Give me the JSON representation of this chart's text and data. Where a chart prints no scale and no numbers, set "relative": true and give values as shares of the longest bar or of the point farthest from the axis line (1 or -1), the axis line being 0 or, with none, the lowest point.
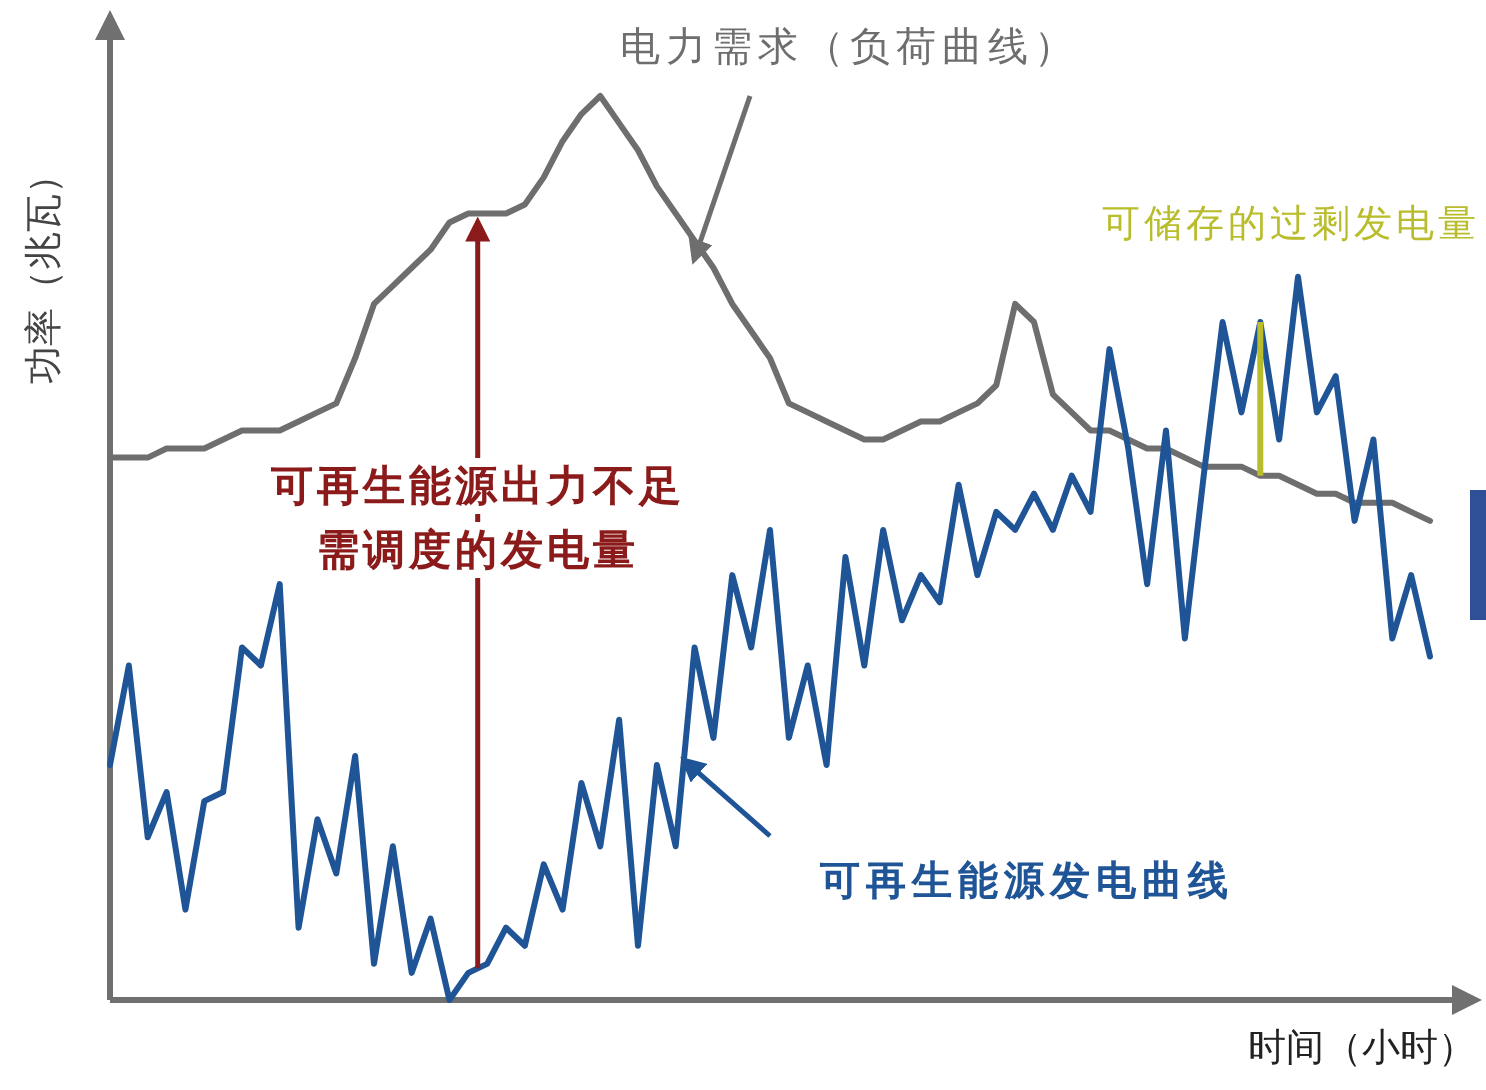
{
  "chart_data": {
    "type": "line",
    "relative": true,
    "xlabel": "时间（小时）",
    "ylabel": "功率（兆瓦）",
    "categories": [
      null,
      null,
      null,
      null,
      null,
      null,
      null,
      null,
      null,
      null,
      null,
      null,
      null,
      null,
      null,
      null,
      null,
      null,
      null,
      null,
      null,
      null,
      null,
      null,
      null,
      null,
      null,
      null,
      null,
      null,
      null,
      null,
      null,
      null,
      null,
      null,
      null,
      null,
      null,
      null,
      null,
      null,
      null,
      null,
      null,
      null,
      null,
      null,
      null,
      null,
      null,
      null,
      null,
      null,
      null,
      null,
      null,
      null,
      null,
      null,
      null,
      null,
      null,
      null,
      null,
      null,
      null,
      null,
      null,
      null,
      null
    ],
    "series": [
      {
        "name": "电力需求（负荷曲线）",
        "color": "#6e6e6e",
        "values": [
          0.6,
          0.6,
          0.6,
          0.61,
          0.61,
          0.61,
          0.62,
          0.63,
          0.63,
          0.63,
          0.64,
          0.65,
          0.66,
          0.71,
          0.77,
          0.79,
          0.81,
          0.83,
          0.86,
          0.87,
          0.87,
          0.87,
          0.88,
          0.91,
          0.95,
          0.98,
          1,
          0.97,
          0.94,
          0.9,
          0.87,
          0.84,
          0.81,
          0.77,
          0.74,
          0.71,
          0.66,
          0.65,
          0.64,
          0.63,
          0.62,
          0.62,
          0.63,
          0.64,
          0.64,
          0.65,
          0.66,
          0.68,
          0.77,
          0.75,
          0.67,
          0.65,
          0.63,
          0.63,
          0.62,
          0.61,
          0.61,
          0.6,
          0.59,
          0.59,
          0.59,
          0.58,
          0.58,
          0.57,
          0.56,
          0.56,
          0.55,
          0.55,
          0.55,
          0.54,
          0.53
        ]
      },
      {
        "name": "可再生能源发电曲线",
        "color": "#1f5597",
        "values": [
          0.26,
          0.37,
          0.18,
          0.23,
          0.1,
          0.22,
          0.23,
          0.39,
          0.37,
          0.46,
          0.08,
          0.2,
          0.14,
          0.27,
          0.04,
          0.17,
          0.03,
          0.09,
          0,
          0.03,
          0.04,
          0.08,
          0.06,
          0.15,
          0.1,
          0.24,
          0.17,
          0.31,
          0.06,
          0.26,
          0.17,
          0.39,
          0.29,
          0.47,
          0.39,
          0.52,
          0.29,
          0.37,
          0.26,
          0.49,
          0.37,
          0.52,
          0.42,
          0.47,
          0.44,
          0.57,
          0.47,
          0.54,
          0.52,
          0.56,
          0.52,
          0.58,
          0.54,
          0.72,
          0.61,
          0.46,
          0.63,
          0.4,
          0.58,
          0.75,
          0.65,
          0.75,
          0.62,
          0.8,
          0.65,
          0.69,
          0.53,
          0.62,
          0.4,
          0.47,
          0.38
        ]
      }
    ],
    "annotations": [
      "可再生能源出力不足",
      "需调度的发电量",
      "可储存的过剩发电量"
    ]
  }
}
